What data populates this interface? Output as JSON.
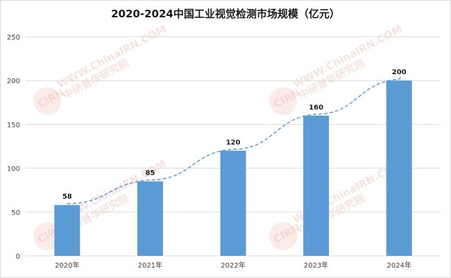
{
  "chart_data": {
    "type": "bar",
    "title": "2020-2024中国工业视觉检测市场规模（亿元）",
    "categories": [
      "2020年",
      "2021年",
      "2022年",
      "2023年",
      "2024年"
    ],
    "values": [
      58,
      85,
      120,
      160,
      200
    ],
    "ylim": [
      0,
      250
    ],
    "yticks": [
      0,
      50,
      100,
      150,
      200,
      250
    ],
    "grid": true,
    "trendline": true,
    "colors": {
      "bar": "#5b9bd5",
      "trend": "#5b9bd5",
      "grid": "#d9d9d9"
    }
  },
  "watermark": {
    "logo": "CIRN",
    "text": "中研普华研究院",
    "url": "WWW.ChinaIRN.COM"
  }
}
